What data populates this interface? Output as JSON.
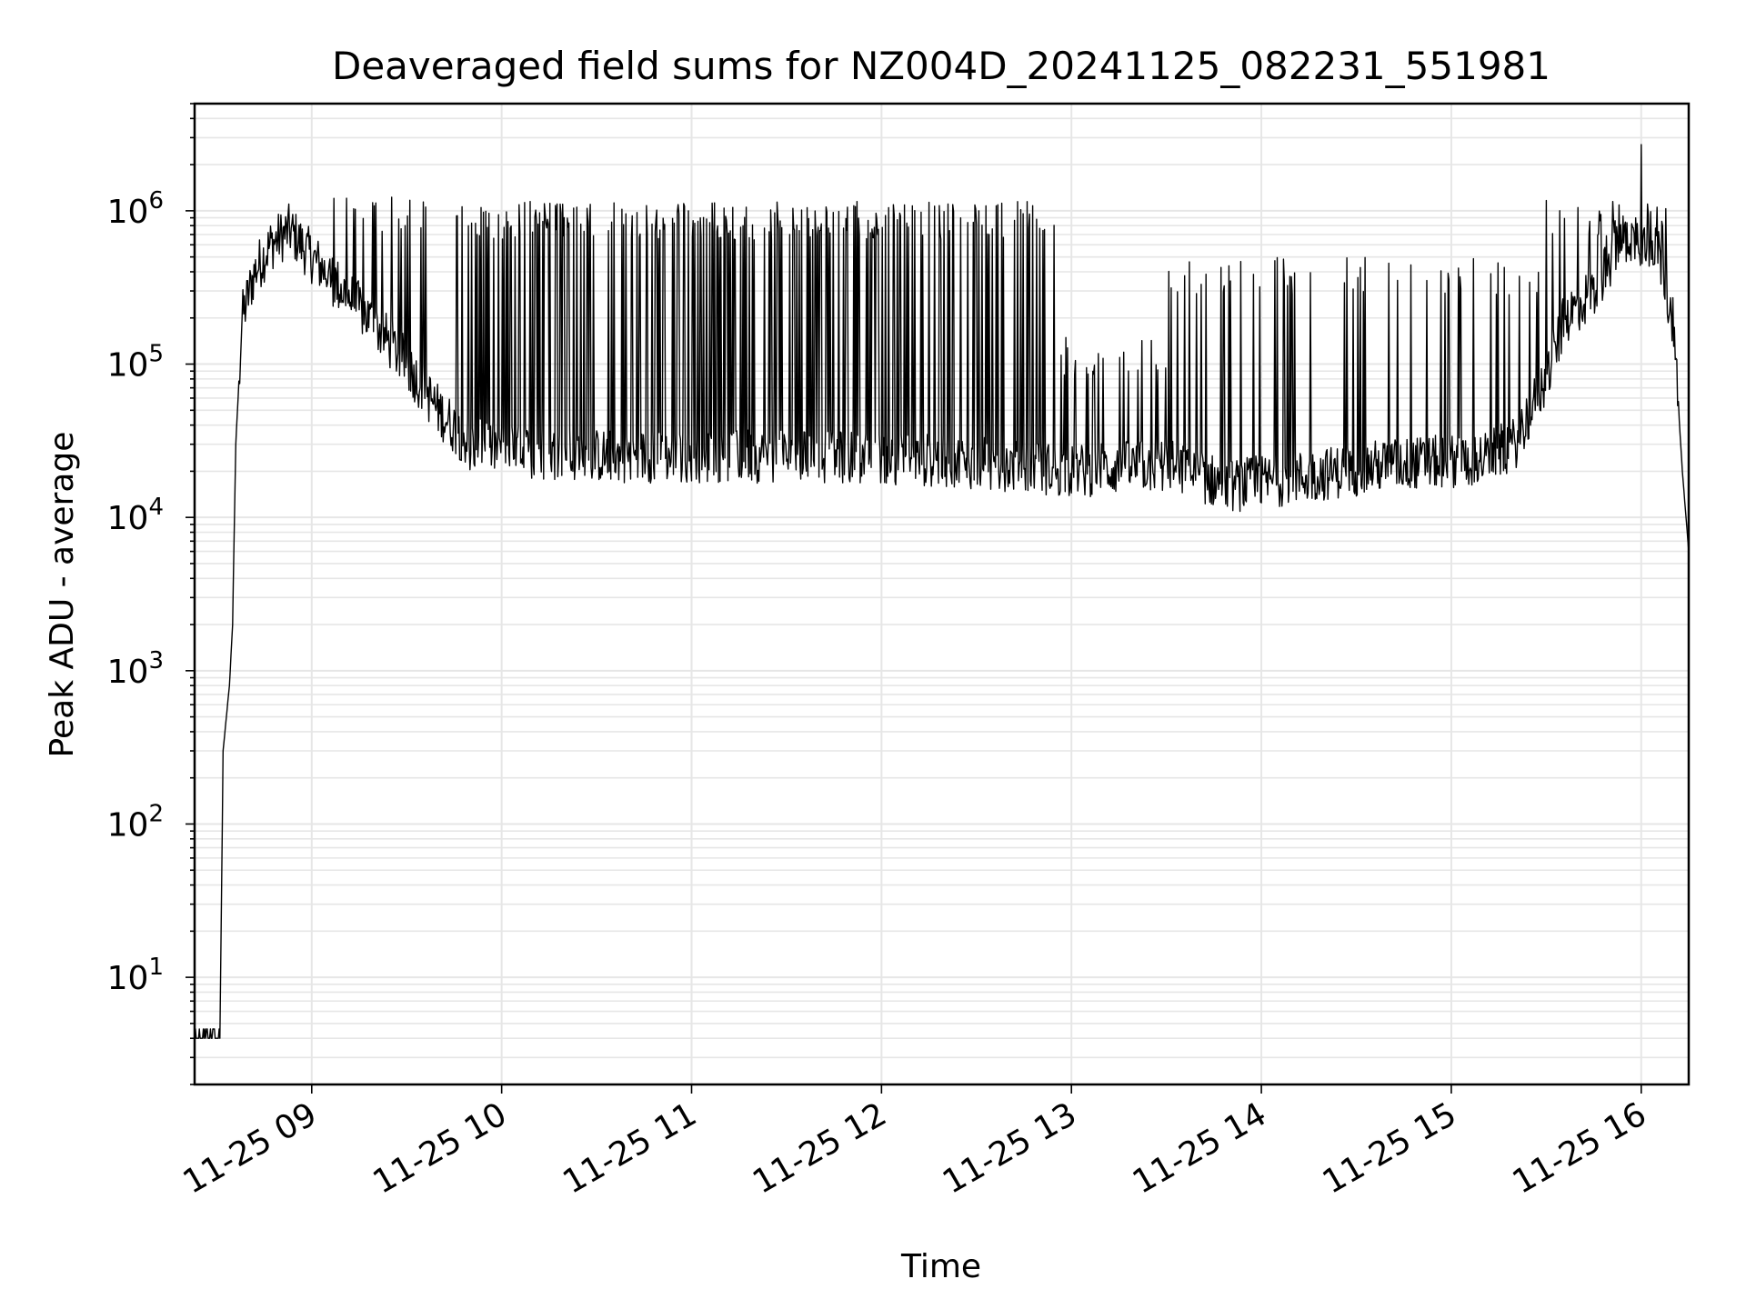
{
  "chart_data": {
    "type": "line",
    "title": "Deaveraged field sums for NZ004D_20241125_082231_551981",
    "xlabel": "Time",
    "ylabel": "Peak ADU - average",
    "x_scale": "time",
    "y_scale": "log",
    "xlim": [
      "2024-11-25 08:23",
      "2024-11-25 16:15"
    ],
    "ylim": [
      2,
      5000000
    ],
    "grid": true,
    "grid_minor": true,
    "line_color": "#000000",
    "grid_color": "#e6e6e6",
    "x_ticks": [
      "11-25 09",
      "11-25 10",
      "11-25 11",
      "11-25 12",
      "11-25 13",
      "11-25 14",
      "11-25 15",
      "11-25 16"
    ],
    "y_ticks": [
      {
        "base": "10",
        "exp": "1",
        "value": 10
      },
      {
        "base": "10",
        "exp": "2",
        "value": 100
      },
      {
        "base": "10",
        "exp": "3",
        "value": 1000
      },
      {
        "base": "10",
        "exp": "4",
        "value": 10000
      },
      {
        "base": "10",
        "exp": "5",
        "value": 100000
      },
      {
        "base": "10",
        "exp": "6",
        "value": 1000000
      }
    ],
    "series": [
      {
        "baseline_points": [
          [
            "2024-11-25 08:23",
            4
          ],
          [
            "2024-11-25 08:31",
            4
          ],
          [
            "2024-11-25 08:32",
            300
          ],
          [
            "2024-11-25 08:34",
            800
          ],
          [
            "2024-11-25 08:35",
            2000
          ],
          [
            "2024-11-25 08:36",
            30000
          ],
          [
            "2024-11-25 08:38",
            200000
          ],
          [
            "2024-11-25 08:42",
            400000
          ],
          [
            "2024-11-25 08:47",
            600000
          ],
          [
            "2024-11-25 08:53",
            750000
          ],
          [
            "2024-11-25 09:00",
            500000
          ],
          [
            "2024-11-25 09:10",
            300000
          ],
          [
            "2024-11-25 09:20",
            180000
          ],
          [
            "2024-11-25 09:30",
            100000
          ],
          [
            "2024-11-25 09:40",
            50000
          ],
          [
            "2024-11-25 09:50",
            30000
          ],
          [
            "2024-11-25 10:10",
            26000
          ],
          [
            "2024-11-25 10:40",
            25000
          ],
          [
            "2024-11-25 11:10",
            25000
          ],
          [
            "2024-11-25 11:40",
            25000
          ],
          [
            "2024-11-25 12:10",
            24000
          ],
          [
            "2024-11-25 12:40",
            22000
          ],
          [
            "2024-11-25 13:00",
            20000
          ],
          [
            "2024-11-25 13:30",
            22000
          ],
          [
            "2024-11-25 13:50",
            16000
          ],
          [
            "2024-11-25 14:10",
            18000
          ],
          [
            "2024-11-25 14:40",
            22000
          ],
          [
            "2024-11-25 15:10",
            24000
          ],
          [
            "2024-11-25 15:20",
            30000
          ],
          [
            "2024-11-25 15:30",
            80000
          ],
          [
            "2024-11-25 15:36",
            200000
          ],
          [
            "2024-11-25 15:45",
            300000
          ],
          [
            "2024-11-25 15:55",
            700000
          ],
          [
            "2024-11-25 16:05",
            600000
          ],
          [
            "2024-11-25 16:10",
            200000
          ],
          [
            "2024-11-25 16:13",
            20000
          ],
          [
            "2024-11-25 16:15",
            6000
          ]
        ],
        "spike_bands": [
          {
            "from": "2024-11-25 09:05",
            "to": "2024-11-25 09:45",
            "peak": 1300000,
            "density": 0.2
          },
          {
            "from": "2024-11-25 09:45",
            "to": "2024-11-25 12:55",
            "peak": 1150000,
            "density": 0.6
          },
          {
            "from": "2024-11-25 12:55",
            "to": "2024-11-25 13:30",
            "peak": 150000,
            "density": 0.3
          },
          {
            "from": "2024-11-25 13:30",
            "to": "2024-11-25 15:30",
            "peak": 500000,
            "density": 0.25
          },
          {
            "from": "2024-11-25 15:30",
            "to": "2024-11-25 16:08",
            "peak": 1200000,
            "density": 0.4
          }
        ],
        "max_value": 2700000
      }
    ]
  }
}
